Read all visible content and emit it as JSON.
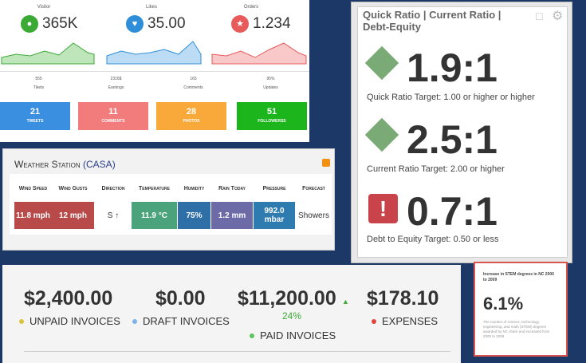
{
  "social_widget": {
    "stats": [
      {
        "label": "Visitor",
        "value": "365K"
      },
      {
        "label": "Likes",
        "value": "35.00"
      },
      {
        "label": "Orders",
        "value": "1.234"
      }
    ],
    "counters": [
      {
        "value": "555",
        "label": "Tikets"
      },
      {
        "value": "2316$",
        "label": "Earnings"
      },
      {
        "value": "165",
        "label": "Comments"
      },
      {
        "value": "95%",
        "label": "Updates"
      }
    ],
    "tiles": [
      {
        "value": "21",
        "label": "TWEETS"
      },
      {
        "value": "11",
        "label": "COMMENTS"
      },
      {
        "value": "28",
        "label": "PHOTOS"
      },
      {
        "value": "51",
        "label": "FOLLOWERSS"
      }
    ]
  },
  "weather": {
    "title": "Weather Station",
    "title_suffix": "(CASA)",
    "headers": [
      "Wind Speed",
      "Wind Gusts",
      "Direction",
      "Temperature",
      "Humidity",
      "Rain Today",
      "Pressure",
      "Forecast"
    ],
    "values": [
      "11.8 mph",
      "12 mph",
      "S ↑",
      "11.9 °C",
      "75%",
      "1.2 mm",
      "992.0 mbar",
      "Showers"
    ]
  },
  "ratios": {
    "title": "Quick Ratio | Current Ratio | Debt-Equity",
    "items": [
      {
        "value": "1.9:1",
        "target": "Quick Ratio Target: 1.00 or higher or higher"
      },
      {
        "value": "2.5:1",
        "target": "Current Ratio Target: 2.00 or higher"
      },
      {
        "value": "0.7:1",
        "target": "Debt to Equity Target: 0.50 or less"
      }
    ]
  },
  "invoices": [
    {
      "value": "$2,400.00",
      "label": "UNPAID INVOICES"
    },
    {
      "value": "$0.00",
      "label": "DRAFT INVOICES"
    },
    {
      "value": "$11,200.00",
      "change": "24%",
      "label": "PAID INVOICES"
    },
    {
      "value": "$178.10",
      "label": "EXPENSES"
    }
  ],
  "stem": {
    "title": "Increase in STEM degrees in NC 2000 to 2009",
    "value": "6.1%",
    "note": "The number of science, technology, engineering, and math (STEM) degrees awarded by NC share and increased from 2000 to 2009"
  }
}
